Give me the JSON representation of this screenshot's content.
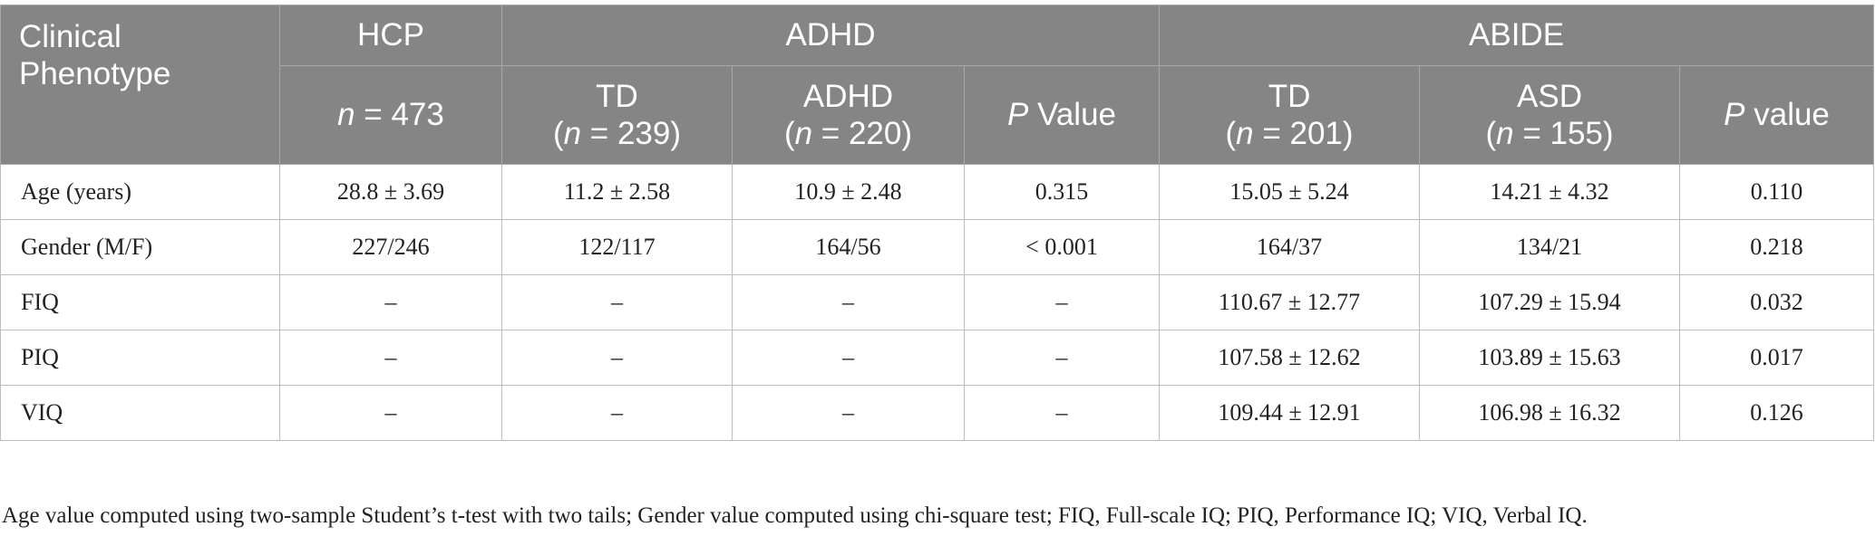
{
  "header": {
    "stub": "Clinical Phenotype",
    "groups": {
      "hcp": "HCP",
      "adhd": "ADHD",
      "abide": "ABIDE"
    },
    "subheaders": {
      "hcp_n_var": "n",
      "hcp_n_rest": " = 473",
      "adhd_td_label": "TD",
      "adhd_td_open": "(",
      "adhd_td_n_var": "n",
      "adhd_td_n_rest": " = 239)",
      "adhd_adhd_label": "ADHD",
      "adhd_adhd_open": "(",
      "adhd_adhd_n_var": "n",
      "adhd_adhd_n_rest": " = 220)",
      "adhd_p_var": "P",
      "adhd_p_rest": " Value",
      "abide_td_label": "TD",
      "abide_td_open": "(",
      "abide_td_n_var": "n",
      "abide_td_n_rest": " = 201)",
      "abide_asd_label": "ASD",
      "abide_asd_open": "(",
      "abide_asd_n_var": "n",
      "abide_asd_n_rest": " = 155)",
      "abide_p_var": "P",
      "abide_p_rest": " value"
    }
  },
  "rows": [
    {
      "label": "Age (years)",
      "hcp": "28.8 ± 3.69",
      "adhd_td": "11.2 ± 2.58",
      "adhd_adhd": "10.9 ± 2.48",
      "adhd_p": "0.315",
      "abide_td": "15.05 ± 5.24",
      "abide_asd": "14.21 ± 4.32",
      "abide_p": "0.110"
    },
    {
      "label": "Gender (M/F)",
      "hcp": "227/246",
      "adhd_td": "122/117",
      "adhd_adhd": "164/56",
      "adhd_p": "< 0.001",
      "abide_td": "164/37",
      "abide_asd": "134/21",
      "abide_p": "0.218"
    },
    {
      "label": "FIQ",
      "hcp": "–",
      "adhd_td": "–",
      "adhd_adhd": "–",
      "adhd_p": "–",
      "abide_td": "110.67 ± 12.77",
      "abide_asd": "107.29 ± 15.94",
      "abide_p": "0.032"
    },
    {
      "label": "PIQ",
      "hcp": "–",
      "adhd_td": "–",
      "adhd_adhd": "–",
      "adhd_p": "–",
      "abide_td": "107.58 ± 12.62",
      "abide_asd": "103.89 ± 15.63",
      "abide_p": "0.017"
    },
    {
      "label": "VIQ",
      "hcp": "–",
      "adhd_td": "–",
      "adhd_adhd": "–",
      "adhd_p": "–",
      "abide_td": "109.44 ± 12.91",
      "abide_asd": "106.98 ± 16.32",
      "abide_p": "0.126"
    }
  ],
  "footnote": "Age value computed using two-sample Student’s t-test with two tails; Gender value computed using chi-square test; FIQ, Full-scale IQ; PIQ, Performance IQ; VIQ, Verbal IQ.",
  "colors": {
    "header_background": "#858585",
    "header_text": "#ffffff",
    "grid_line": "#bdbdbd",
    "body_text": "#222222"
  }
}
